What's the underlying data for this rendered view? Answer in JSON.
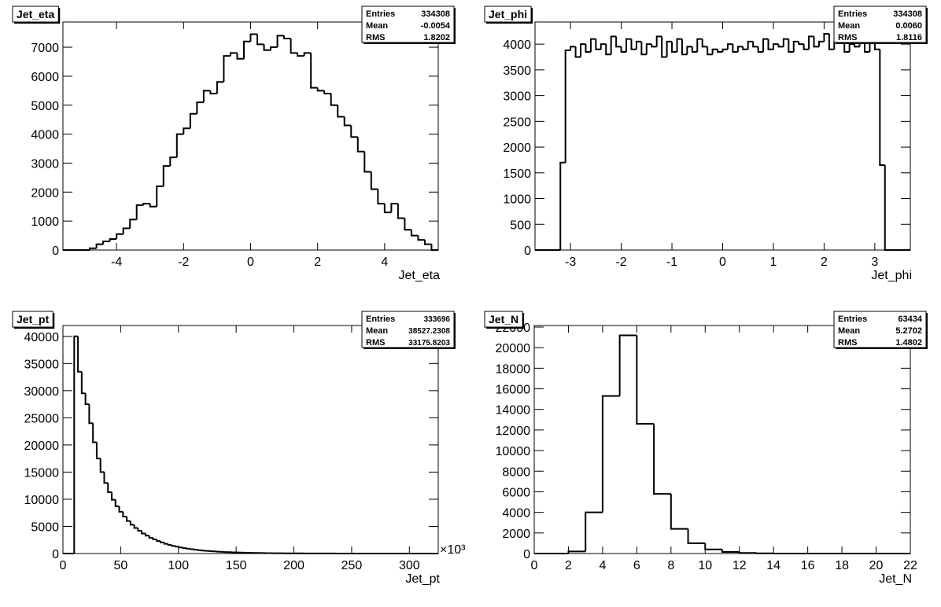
{
  "chart_data": [
    {
      "type": "histogram",
      "title": "Jet_eta",
      "xlabel": "Jet_eta",
      "color": "#000000",
      "stats": [
        {
          "label": "Entries",
          "value": "334308"
        },
        {
          "label": "Mean",
          "value": "-0.0054"
        },
        {
          "label": "RMS",
          "value": "1.8202"
        }
      ],
      "bins": [
        -5.6,
        -5.4,
        -5.2,
        -5,
        -4.8,
        -4.6,
        -4.4,
        -4.2,
        -4,
        -3.8,
        -3.6,
        -3.4,
        -3.2,
        -3,
        -2.8,
        -2.6,
        -2.4,
        -2.2,
        -2,
        -1.8,
        -1.6,
        -1.4,
        -1.2,
        -1,
        -0.8,
        -0.6,
        -0.4,
        -0.2,
        0,
        0.2,
        0.4,
        0.6,
        0.8,
        1,
        1.2,
        1.4,
        1.6,
        1.8,
        2,
        2.2,
        2.4,
        2.6,
        2.8,
        3,
        3.2,
        3.4,
        3.6,
        3.8,
        4,
        4.2,
        4.4,
        4.6,
        4.8,
        5,
        5.2,
        5.4,
        5.6
      ],
      "values": [
        0,
        0,
        0,
        0,
        60,
        200,
        300,
        380,
        550,
        750,
        1050,
        1550,
        1600,
        1500,
        2200,
        2900,
        3200,
        4000,
        4200,
        4700,
        5100,
        5500,
        5400,
        5800,
        6700,
        6800,
        6600,
        7200,
        7450,
        7100,
        6900,
        7000,
        7400,
        7300,
        6800,
        6700,
        6800,
        5600,
        5500,
        5400,
        5000,
        4600,
        4300,
        3900,
        3400,
        2700,
        2100,
        1600,
        1300,
        1600,
        1100,
        700,
        500,
        350,
        200,
        0
      ],
      "xlim": [
        -5.6,
        5.6
      ],
      "ylim": [
        0,
        7870
      ],
      "xticks": [
        -4,
        -2,
        0,
        2,
        4
      ],
      "yticks": [
        0,
        1000,
        2000,
        3000,
        4000,
        5000,
        6000,
        7000
      ]
    },
    {
      "type": "histogram",
      "title": "Jet_phi",
      "xlabel": "Jet_phi",
      "color": "#000000",
      "stats": [
        {
          "label": "Entries",
          "value": "334308"
        },
        {
          "label": "Mean",
          "value": "0.0060"
        },
        {
          "label": "RMS",
          "value": "1.8116"
        }
      ],
      "bins": [
        -3.7,
        -3.6,
        -3.5,
        -3.4,
        -3.3,
        -3.2,
        -3.1,
        -3,
        -2.9,
        -2.8,
        -2.7,
        -2.6,
        -2.5,
        -2.4,
        -2.3,
        -2.2,
        -2.1,
        -2,
        -1.9,
        -1.8,
        -1.7,
        -1.6,
        -1.5,
        -1.4,
        -1.3,
        -1.2,
        -1.1,
        -1,
        -0.9,
        -0.8,
        -0.7,
        -0.6,
        -0.5,
        -0.4,
        -0.3,
        -0.2,
        -0.1,
        0,
        0.1,
        0.2,
        0.3,
        0.4,
        0.5,
        0.6,
        0.7,
        0.8,
        0.9,
        1,
        1.1,
        1.2,
        1.3,
        1.4,
        1.5,
        1.6,
        1.7,
        1.8,
        1.9,
        2,
        2.1,
        2.2,
        2.3,
        2.4,
        2.5,
        2.6,
        2.7,
        2.8,
        2.9,
        3,
        3.1,
        3.2,
        3.3,
        3.4,
        3.5,
        3.6,
        3.7
      ],
      "values": [
        0,
        0,
        0,
        0,
        0,
        1700,
        3880,
        3950,
        3750,
        4000,
        3850,
        4100,
        3900,
        4000,
        3800,
        4150,
        3950,
        3850,
        4100,
        3900,
        4050,
        3800,
        4000,
        3950,
        4150,
        3750,
        4050,
        3850,
        4100,
        3800,
        3950,
        3850,
        4100,
        3950,
        3800,
        3900,
        3850,
        3900,
        4000,
        3850,
        3950,
        3900,
        4050,
        3950,
        3850,
        4100,
        3900,
        4000,
        3950,
        4100,
        3850,
        4050,
        4000,
        3900,
        4150,
        3950,
        4050,
        4200,
        3900,
        4050,
        4150,
        3850,
        4000,
        3950,
        4100,
        3850,
        4050,
        3900,
        1650,
        0,
        0,
        0,
        0,
        0
      ],
      "xlim": [
        -3.7,
        3.7
      ],
      "ylim": [
        0,
        4430
      ],
      "xticks": [
        -3,
        -2,
        -1,
        0,
        1,
        2,
        3
      ],
      "yticks": [
        0,
        500,
        1000,
        1500,
        2000,
        2500,
        3000,
        3500,
        4000
      ]
    },
    {
      "type": "histogram",
      "title": "Jet_pt",
      "xlabel": "Jet_pt",
      "x_exponent": "×10³",
      "color": "#000000",
      "stats": [
        {
          "label": "Entries",
          "value": "333696"
        },
        {
          "label": "Mean",
          "value": "38527.2308"
        },
        {
          "label": "RMS",
          "value": "33175.8203"
        }
      ],
      "bins": [
        0,
        3.25,
        6.5,
        9.75,
        13,
        16.25,
        19.5,
        22.75,
        26,
        29.25,
        32.5,
        35.75,
        39,
        42.25,
        45.5,
        48.75,
        52,
        55.25,
        58.5,
        61.75,
        65,
        68.25,
        71.5,
        74.75,
        78,
        81.25,
        84.5,
        87.75,
        91,
        94.25,
        97.5,
        100.75,
        104,
        107.25,
        110.5,
        113.75,
        117,
        120.25,
        123.5,
        126.75,
        130,
        133.25,
        136.5,
        139.75,
        143,
        146.25,
        149.5,
        152.75,
        156,
        159.25,
        162.5,
        165.75,
        169,
        172.25,
        175.5,
        178.75,
        182,
        185.25,
        188.5,
        191.75,
        195,
        198.25,
        201.5,
        204.75,
        208,
        211.25,
        214.5,
        217.75,
        221,
        224.25,
        227.5,
        230.75,
        234,
        237.25,
        240.5,
        243.75,
        247,
        250.25,
        253.5,
        256.75,
        260,
        263.25,
        266.5,
        269.75,
        273,
        276.25,
        279.5,
        282.75,
        286,
        289.25,
        292.5,
        295.75,
        299,
        302.25,
        305.5,
        308.75,
        312,
        315.25,
        318.5,
        321.75,
        325
      ],
      "values": [
        0,
        0,
        0,
        40000,
        33500,
        29500,
        27500,
        24000,
        20500,
        17500,
        15000,
        13000,
        11300,
        9900,
        8700,
        7700,
        6800,
        6000,
        5300,
        4700,
        4200,
        3700,
        3300,
        2900,
        2600,
        2300,
        2050,
        1800,
        1600,
        1420,
        1260,
        1120,
        1000,
        890,
        790,
        700,
        620,
        550,
        490,
        440,
        390,
        350,
        310,
        280,
        250,
        220,
        200,
        180,
        160,
        140,
        125,
        110,
        100,
        90,
        80,
        70,
        63,
        56,
        50,
        45,
        40,
        35,
        31,
        28,
        25,
        22,
        20,
        18,
        16,
        14,
        12,
        11,
        10,
        9,
        8,
        7,
        6,
        6,
        5,
        5,
        4,
        4,
        3,
        3,
        3,
        2,
        2,
        2,
        2,
        1,
        1,
        1,
        1,
        1,
        1,
        0,
        0,
        0,
        0,
        0
      ],
      "xlim": [
        0,
        325
      ],
      "ylim": [
        0,
        42000
      ],
      "xticks": [
        0,
        50,
        100,
        150,
        200,
        250,
        300
      ],
      "yticks": [
        0,
        5000,
        10000,
        15000,
        20000,
        25000,
        30000,
        35000,
        40000
      ]
    },
    {
      "type": "histogram",
      "title": "Jet_N",
      "xlabel": "Jet_N",
      "color": "#000000",
      "stats": [
        {
          "label": "Entries",
          "value": "63434"
        },
        {
          "label": "Mean",
          "value": "5.2702"
        },
        {
          "label": "RMS",
          "value": "1.4802"
        }
      ],
      "bins": [
        0,
        1,
        2,
        3,
        4,
        5,
        6,
        7,
        8,
        9,
        10,
        11,
        12,
        13,
        14,
        15,
        16,
        17,
        18,
        19,
        20,
        21,
        22
      ],
      "values": [
        0,
        0,
        200,
        4000,
        15300,
        21200,
        12600,
        5800,
        2400,
        1000,
        400,
        150,
        60,
        20,
        0,
        0,
        0,
        0,
        0,
        0,
        0,
        0
      ],
      "xlim": [
        0,
        22
      ],
      "ylim": [
        0,
        22150
      ],
      "xticks": [
        0,
        2,
        4,
        6,
        8,
        10,
        12,
        14,
        16,
        18,
        20,
        22
      ],
      "yticks": [
        0,
        2000,
        4000,
        6000,
        8000,
        10000,
        12000,
        14000,
        16000,
        18000,
        20000,
        22000
      ]
    }
  ]
}
